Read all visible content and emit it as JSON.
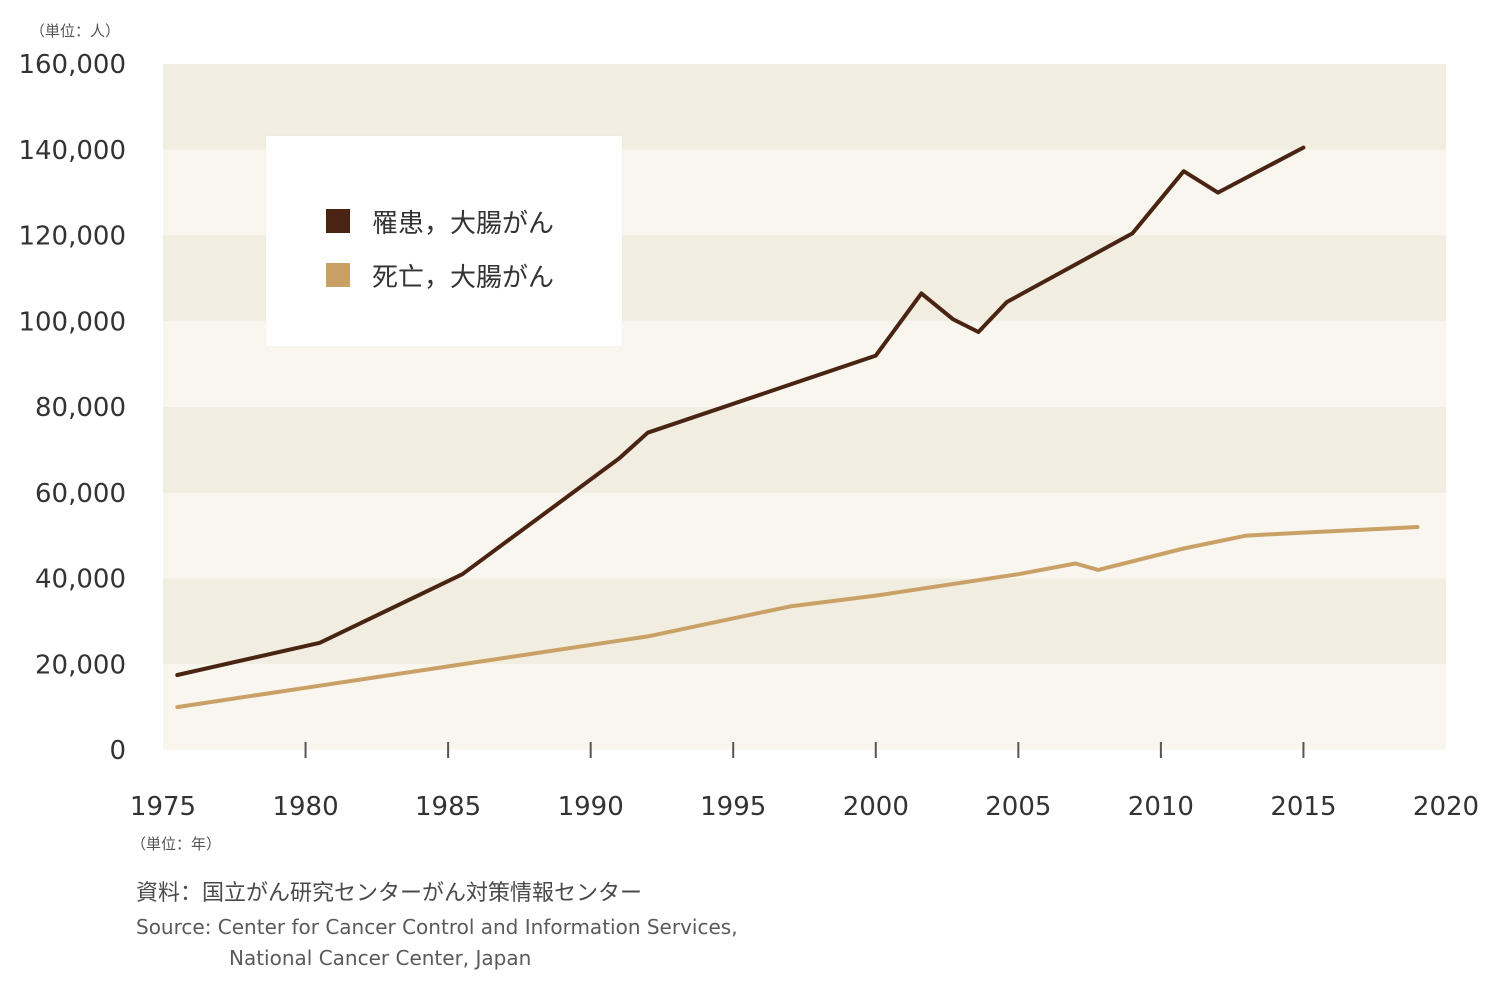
{
  "chart_data": {
    "type": "line",
    "y_unit_label": "（単位：人）",
    "x_unit_label": "（単位：年）",
    "xlim": [
      1975,
      2020
    ],
    "ylim": [
      0,
      160000
    ],
    "x_ticks": [
      1975,
      1980,
      1985,
      1990,
      1995,
      2000,
      2005,
      2010,
      2015,
      2020
    ],
    "x_tick_labels": [
      "1975",
      "1980",
      "1985",
      "1990",
      "1995",
      "2000",
      "2005",
      "2010",
      "2015",
      "2020"
    ],
    "y_ticks": [
      0,
      20000,
      40000,
      60000,
      80000,
      100000,
      120000,
      140000,
      160000
    ],
    "y_tick_labels": [
      "0",
      "20,000",
      "40,000",
      "60,000",
      "80,000",
      "100,000",
      "120,000",
      "140,000",
      "160,000"
    ],
    "legend_position": "top-left",
    "series": [
      {
        "name": "罹患，大腸がん",
        "color": "#4a2412",
        "x": [
          1975.5,
          1980.5,
          1985.5,
          1991,
          1992,
          2000,
          2001.6,
          2002.7,
          2003.6,
          2004.6,
          2009,
          2010.8,
          2012,
          2015
        ],
        "y": [
          17500,
          25000,
          41000,
          68000,
          74000,
          92000,
          106500,
          100500,
          97500,
          104500,
          120500,
          135000,
          130000,
          140500
        ]
      },
      {
        "name": "死亡，大腸がん",
        "color": "#c9a066",
        "x": [
          1975.5,
          1980,
          1985,
          1992,
          1997,
          2000,
          2005,
          2007,
          2007.8,
          2010.8,
          2013,
          2015,
          2019
        ],
        "y": [
          10000,
          14500,
          19500,
          26500,
          33500,
          36000,
          41000,
          43500,
          42000,
          47000,
          50000,
          50700,
          52000
        ]
      }
    ]
  },
  "source": {
    "ja": "資料：国立がん研究センターがん対策情報センター",
    "en_line1": "Source: Center for Cancer Control and Information Services,",
    "en_line2": "National Cancer Center, Japan"
  },
  "colors": {
    "band_light": "#f8f6ef",
    "band_dark": "#f1ede1",
    "axis_text": "#333333",
    "tick": "#555555"
  }
}
